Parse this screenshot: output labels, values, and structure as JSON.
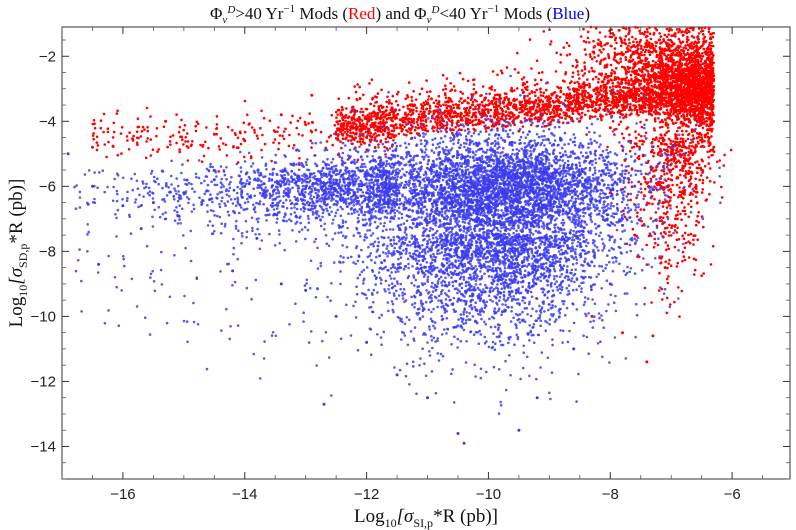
{
  "chart_data": {
    "type": "scatter",
    "title": {
      "phi": "Φ",
      "sub": "ν",
      "sup": "D",
      "part1": ">40 Yr",
      "exp": "−1",
      "part2": " Mods (",
      "red_word": "Red",
      "part3": ") and ",
      "part4": "<40 Yr",
      "part5": " Mods (",
      "blue_word": "Blue",
      "part6": ")"
    },
    "xlabel": {
      "prefix": "Log",
      "base": "10",
      "open": "[σ",
      "sub": "SI,p",
      "rest": "*R (pb)]"
    },
    "ylabel": {
      "prefix": "Log",
      "base": "10",
      "open": "[σ",
      "sub": "SD,p",
      "rest": "*R (pb)]"
    },
    "xlim": [
      -17,
      -5.05
    ],
    "ylim": [
      -15,
      -1.1
    ],
    "x_ticks": [
      -16,
      -14,
      -12,
      -10,
      -8,
      -6
    ],
    "y_ticks": [
      -14,
      -12,
      -10,
      -8,
      -6,
      -4,
      -2
    ],
    "x_tick_labels": [
      "−16",
      "−14",
      "−12",
      "−10",
      "−8",
      "−6"
    ],
    "y_tick_labels": [
      "−14",
      "−12",
      "−10",
      "−8",
      "−6",
      "−4",
      "−2"
    ],
    "legend": "none",
    "series": [
      {
        "name": "Φν D > 40 Yr⁻¹ Mods (Red)",
        "color": "#ff0000",
        "points": [
          [
            -8.0,
            -4.2
          ],
          [
            -7.5,
            -3.6
          ],
          [
            -7.0,
            -3.2
          ],
          [
            -6.8,
            -2.8
          ],
          [
            -6.6,
            -2.4
          ],
          [
            -7.2,
            -2.9
          ],
          [
            -6.5,
            -3.0
          ],
          [
            -7.8,
            -3.8
          ],
          [
            -8.5,
            -4.0
          ],
          [
            -9.0,
            -4.1
          ],
          [
            -9.5,
            -4.3
          ],
          [
            -10.0,
            -4.2
          ],
          [
            -10.5,
            -4.0
          ],
          [
            -11.0,
            -4.3
          ],
          [
            -11.5,
            -4.2
          ],
          [
            -12.0,
            -4.5
          ],
          [
            -12.5,
            -4.4
          ],
          [
            -13.0,
            -4.1
          ],
          [
            -13.4,
            -3.8
          ],
          [
            -14.0,
            -4.6
          ],
          [
            -14.5,
            -4.4
          ],
          [
            -15.3,
            -4.0
          ],
          [
            -16.5,
            -4.8
          ],
          [
            -12.9,
            -3.2
          ],
          [
            -9.8,
            -3.3
          ],
          [
            -7.3,
            -10.6
          ],
          [
            -7.8,
            -10.5
          ],
          [
            -8.3,
            -10.0
          ],
          [
            -7.1,
            -8.5
          ],
          [
            -6.9,
            -7.0
          ],
          [
            -7.4,
            -11.4
          ],
          [
            -6.5,
            -5.5
          ],
          [
            -6.3,
            -4.8
          ],
          [
            -7.6,
            -7.5
          ],
          [
            -8.0,
            -6.2
          ],
          [
            -6.7,
            -6.0
          ]
        ]
      },
      {
        "name": "Φν D < 40 Yr⁻¹ Mods (Blue)",
        "color": "#3b3bf0",
        "points": [
          [
            -10.0,
            -6.0
          ],
          [
            -9.5,
            -6.5
          ],
          [
            -9.0,
            -6.0
          ],
          [
            -10.5,
            -6.5
          ],
          [
            -11.0,
            -5.8
          ],
          [
            -11.5,
            -6.0
          ],
          [
            -12.0,
            -6.2
          ],
          [
            -12.5,
            -5.9
          ],
          [
            -13.0,
            -6.0
          ],
          [
            -13.5,
            -6.4
          ],
          [
            -14.0,
            -6.0
          ],
          [
            -14.5,
            -5.8
          ],
          [
            -15.0,
            -6.2
          ],
          [
            -15.5,
            -6.5
          ],
          [
            -16.0,
            -6.6
          ],
          [
            -16.5,
            -6.0
          ],
          [
            -16.9,
            -5.0
          ],
          [
            -16.4,
            -8.4
          ],
          [
            -14.2,
            -8.6
          ],
          [
            -13.0,
            -9.2
          ],
          [
            -12.5,
            -10.0
          ],
          [
            -12.0,
            -10.8
          ],
          [
            -11.5,
            -11.8
          ],
          [
            -11.0,
            -12.5
          ],
          [
            -10.5,
            -13.6
          ],
          [
            -10.4,
            -13.9
          ],
          [
            -9.5,
            -13.5
          ],
          [
            -9.2,
            -12.5
          ],
          [
            -8.6,
            -11.0
          ],
          [
            -8.0,
            -9.0
          ],
          [
            -12.7,
            -12.7
          ],
          [
            -13.4,
            -9.0
          ],
          [
            -13.8,
            -7.6
          ],
          [
            -15.7,
            -7.3
          ],
          [
            -15.1,
            -6.9
          ],
          [
            -8.3,
            -6.4
          ],
          [
            -7.6,
            -6.0
          ],
          [
            -7.8,
            -7.2
          ],
          [
            -8.8,
            -8.5
          ],
          [
            -10.2,
            -9.8
          ]
        ]
      }
    ],
    "generated_density": {
      "red": {
        "count": 5200,
        "seed": 11
      },
      "blue": {
        "count": 8200,
        "seed": 7
      }
    }
  }
}
